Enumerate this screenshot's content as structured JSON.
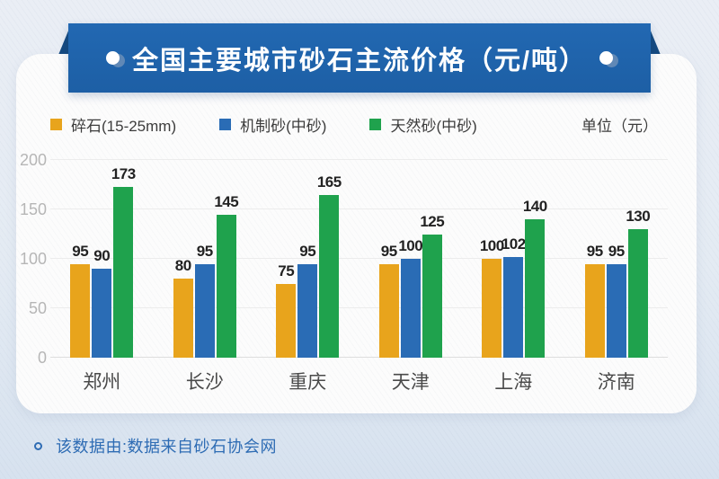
{
  "header": {
    "title": "全国主要城市砂石主流价格（元/吨）"
  },
  "legend": {
    "items": [
      {
        "label": "碎石(15-25mm)",
        "color": "#E8A41C"
      },
      {
        "label": "机制砂(中砂)",
        "color": "#2A6CB5"
      },
      {
        "label": "天然砂(中砂)",
        "color": "#1FA24D"
      }
    ],
    "unit_label": "单位（元）"
  },
  "chart_data": {
    "type": "bar",
    "title": "全国主要城市砂石主流价格（元/吨）",
    "categories": [
      "郑州",
      "长沙",
      "重庆",
      "天津",
      "上海",
      "济南"
    ],
    "series": [
      {
        "name": "碎石(15-25mm)",
        "color": "#E8A41C",
        "values": [
          95,
          80,
          75,
          95,
          100,
          95
        ]
      },
      {
        "name": "机制砂(中砂)",
        "color": "#2A6CB5",
        "values": [
          90,
          95,
          95,
          100,
          102,
          95
        ]
      },
      {
        "name": "天然砂(中砂)",
        "color": "#1FA24D",
        "values": [
          173,
          145,
          165,
          125,
          140,
          130
        ]
      }
    ],
    "xlabel": "",
    "ylabel": "",
    "ylim": [
      0,
      200
    ],
    "yticks": [
      0,
      50,
      100,
      150,
      200
    ],
    "grid": true,
    "legend_position": "top",
    "value_labels": true
  },
  "footer": {
    "note": "该数据由:数据来自砂石协会网"
  },
  "colors": {
    "banner_blue": "#1F64AB",
    "ribbon_fold": "#154A80",
    "card_bg": "#FCFCFC",
    "page_bg_top": "#EAEEF5",
    "page_bg_bottom": "#D7E2EF",
    "footer_text": "#2E6CB4",
    "axis_label": "#B6B6B6",
    "category_label": "#4A4A4A",
    "value_label": "#222222"
  }
}
